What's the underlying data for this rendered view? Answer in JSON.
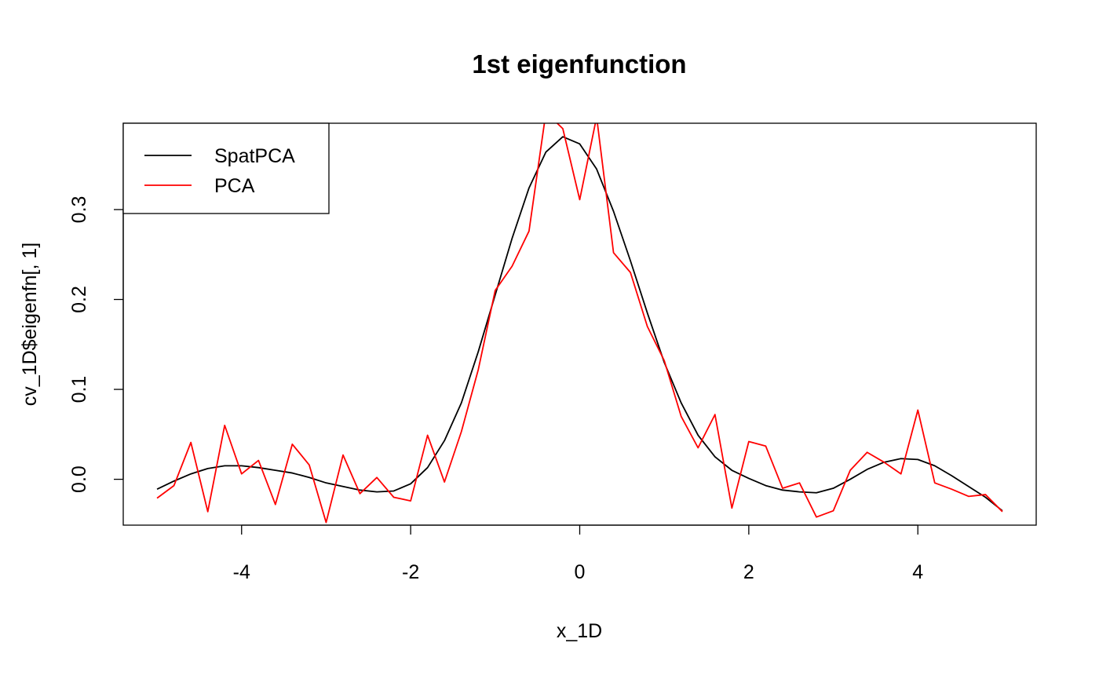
{
  "chart_data": {
    "type": "line",
    "title": "1st eigenfunction",
    "xlabel": "x_1D",
    "ylabel": "cv_1D$eigenfn[, 1]",
    "xlim": [
      -5.4,
      5.4
    ],
    "ylim": [
      -0.051,
      0.396
    ],
    "xticks": [
      -4,
      -2,
      0,
      2,
      4
    ],
    "xtick_labels": [
      "-4",
      "-2",
      "0",
      "2",
      "4"
    ],
    "yticks": [
      0.0,
      0.1,
      0.2,
      0.3
    ],
    "ytick_labels": [
      "0.0",
      "0.1",
      "0.2",
      "0.3"
    ],
    "legend_position": "top-left",
    "x": [
      -5.0,
      -4.8,
      -4.6,
      -4.4,
      -4.2,
      -4.0,
      -3.8,
      -3.6,
      -3.4,
      -3.2,
      -3.0,
      -2.8,
      -2.6,
      -2.4,
      -2.2,
      -2.0,
      -1.8,
      -1.6,
      -1.4,
      -1.2,
      -1.0,
      -0.8,
      -0.6,
      -0.4,
      -0.2,
      0.0,
      0.2,
      0.4,
      0.6,
      0.8,
      1.0,
      1.2,
      1.4,
      1.6,
      1.8,
      2.0,
      2.2,
      2.4,
      2.6,
      2.8,
      3.0,
      3.2,
      3.4,
      3.6,
      3.8,
      4.0,
      4.2,
      4.4,
      4.6,
      4.8,
      5.0
    ],
    "series": [
      {
        "name": "SpatPCA",
        "color": "#000000",
        "values": [
          -0.011,
          -0.002,
          0.006,
          0.012,
          0.015,
          0.015,
          0.013,
          0.01,
          0.007,
          0.002,
          -0.004,
          -0.008,
          -0.012,
          -0.014,
          -0.013,
          -0.005,
          0.013,
          0.043,
          0.085,
          0.142,
          0.205,
          0.268,
          0.324,
          0.364,
          0.381,
          0.373,
          0.345,
          0.298,
          0.243,
          0.185,
          0.13,
          0.085,
          0.049,
          0.025,
          0.01,
          0.001,
          -0.007,
          -0.012,
          -0.014,
          -0.015,
          -0.01,
          0.0,
          0.011,
          0.019,
          0.023,
          0.022,
          0.015,
          0.004,
          -0.008,
          -0.02,
          -0.035
        ]
      },
      {
        "name": "PCA",
        "color": "#ff0000",
        "values": [
          -0.021,
          -0.007,
          0.041,
          -0.036,
          0.06,
          0.006,
          0.021,
          -0.028,
          0.039,
          0.016,
          -0.048,
          0.027,
          -0.016,
          0.002,
          -0.02,
          -0.024,
          0.049,
          -0.003,
          0.053,
          0.122,
          0.21,
          0.237,
          0.276,
          0.408,
          0.39,
          0.311,
          0.403,
          0.252,
          0.23,
          0.17,
          0.132,
          0.07,
          0.035,
          0.072,
          -0.032,
          0.042,
          0.037,
          -0.01,
          -0.004,
          -0.042,
          -0.035,
          0.01,
          0.03,
          0.019,
          0.006,
          0.077,
          -0.004,
          -0.011,
          -0.019,
          -0.017,
          -0.036
        ]
      }
    ]
  }
}
